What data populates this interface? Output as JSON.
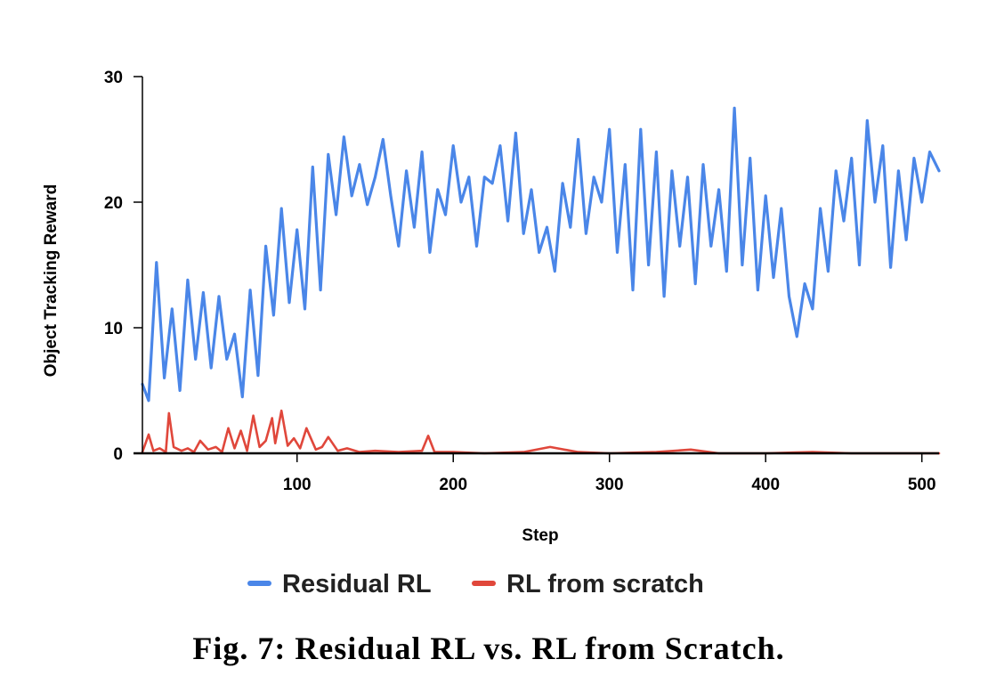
{
  "caption": "Fig. 7: Residual RL vs. RL from Scratch.",
  "chart_data": {
    "type": "line",
    "title": "",
    "xlabel": "Step",
    "ylabel": "Object Tracking Reward",
    "xlim": [
      1,
      511
    ],
    "ylim": [
      0,
      30
    ],
    "xticks": [
      100,
      200,
      300,
      400,
      500
    ],
    "yticks": [
      0,
      10,
      20,
      30
    ],
    "grid": false,
    "legend_position": "bottom-center",
    "colors": {
      "Residual RL": "#4a86e8",
      "RL from scratch": "#e0473b",
      "axis": "#000000"
    },
    "series": [
      {
        "name": "Residual RL",
        "x": [
          1,
          5,
          10,
          15,
          20,
          25,
          30,
          35,
          40,
          45,
          50,
          55,
          60,
          65,
          70,
          75,
          80,
          85,
          90,
          95,
          100,
          105,
          110,
          115,
          120,
          125,
          130,
          135,
          140,
          145,
          150,
          155,
          160,
          165,
          170,
          175,
          180,
          185,
          190,
          195,
          200,
          205,
          210,
          215,
          220,
          225,
          230,
          235,
          240,
          245,
          250,
          255,
          260,
          265,
          270,
          275,
          280,
          285,
          290,
          295,
          300,
          305,
          310,
          315,
          320,
          325,
          330,
          335,
          340,
          345,
          350,
          355,
          360,
          365,
          370,
          375,
          380,
          385,
          390,
          395,
          400,
          405,
          410,
          415,
          420,
          425,
          430,
          435,
          440,
          445,
          450,
          455,
          460,
          465,
          470,
          475,
          480,
          485,
          490,
          495,
          500,
          505,
          511
        ],
        "values": [
          5.5,
          4.2,
          15.2,
          6.0,
          11.5,
          5.0,
          13.8,
          7.5,
          12.8,
          6.8,
          12.5,
          7.5,
          9.5,
          4.5,
          13.0,
          6.2,
          16.5,
          11.0,
          19.5,
          12.0,
          17.8,
          11.5,
          22.8,
          13.0,
          23.8,
          19.0,
          25.2,
          20.5,
          23.0,
          19.8,
          22.0,
          25.0,
          20.5,
          16.5,
          22.5,
          18.0,
          24.0,
          16.0,
          21.0,
          19.0,
          24.5,
          20.0,
          22.0,
          16.5,
          22.0,
          21.5,
          24.5,
          18.5,
          25.5,
          17.5,
          21.0,
          16.0,
          18.0,
          14.5,
          21.5,
          18.0,
          25.0,
          17.5,
          22.0,
          20.0,
          25.8,
          16.0,
          23.0,
          13.0,
          25.8,
          15.0,
          24.0,
          12.5,
          22.5,
          16.5,
          22.0,
          13.5,
          23.0,
          16.5,
          21.0,
          14.5,
          27.5,
          15.0,
          23.5,
          13.0,
          20.5,
          14.0,
          19.5,
          12.5,
          9.3,
          13.5,
          11.5,
          19.5,
          14.5,
          22.5,
          18.5,
          23.5,
          15.0,
          26.5,
          20.0,
          24.5,
          14.8,
          22.5,
          17.0,
          23.5,
          20.0,
          24.0,
          22.5
        ]
      },
      {
        "name": "RL from scratch",
        "x": [
          1,
          5,
          8,
          12,
          16,
          18,
          21,
          26,
          30,
          34,
          38,
          43,
          48,
          52,
          56,
          60,
          64,
          68,
          72,
          76,
          80,
          84,
          86,
          90,
          94,
          98,
          102,
          106,
          112,
          116,
          120,
          126,
          132,
          140,
          150,
          165,
          180,
          184,
          188,
          200,
          220,
          245,
          262,
          280,
          300,
          330,
          352,
          370,
          400,
          430,
          455,
          480,
          511
        ],
        "values": [
          0.1,
          1.5,
          0.2,
          0.4,
          0.1,
          3.2,
          0.5,
          0.2,
          0.4,
          0.1,
          1.0,
          0.3,
          0.5,
          0.1,
          2.0,
          0.4,
          1.8,
          0.2,
          3.0,
          0.5,
          1.0,
          2.8,
          0.8,
          3.4,
          0.6,
          1.2,
          0.4,
          2.0,
          0.3,
          0.5,
          1.3,
          0.2,
          0.4,
          0.1,
          0.2,
          0.1,
          0.2,
          1.4,
          0.1,
          0.1,
          0.0,
          0.1,
          0.5,
          0.1,
          0.0,
          0.1,
          0.3,
          0.0,
          0.0,
          0.1,
          0.0,
          0.0,
          0.0
        ]
      }
    ]
  }
}
